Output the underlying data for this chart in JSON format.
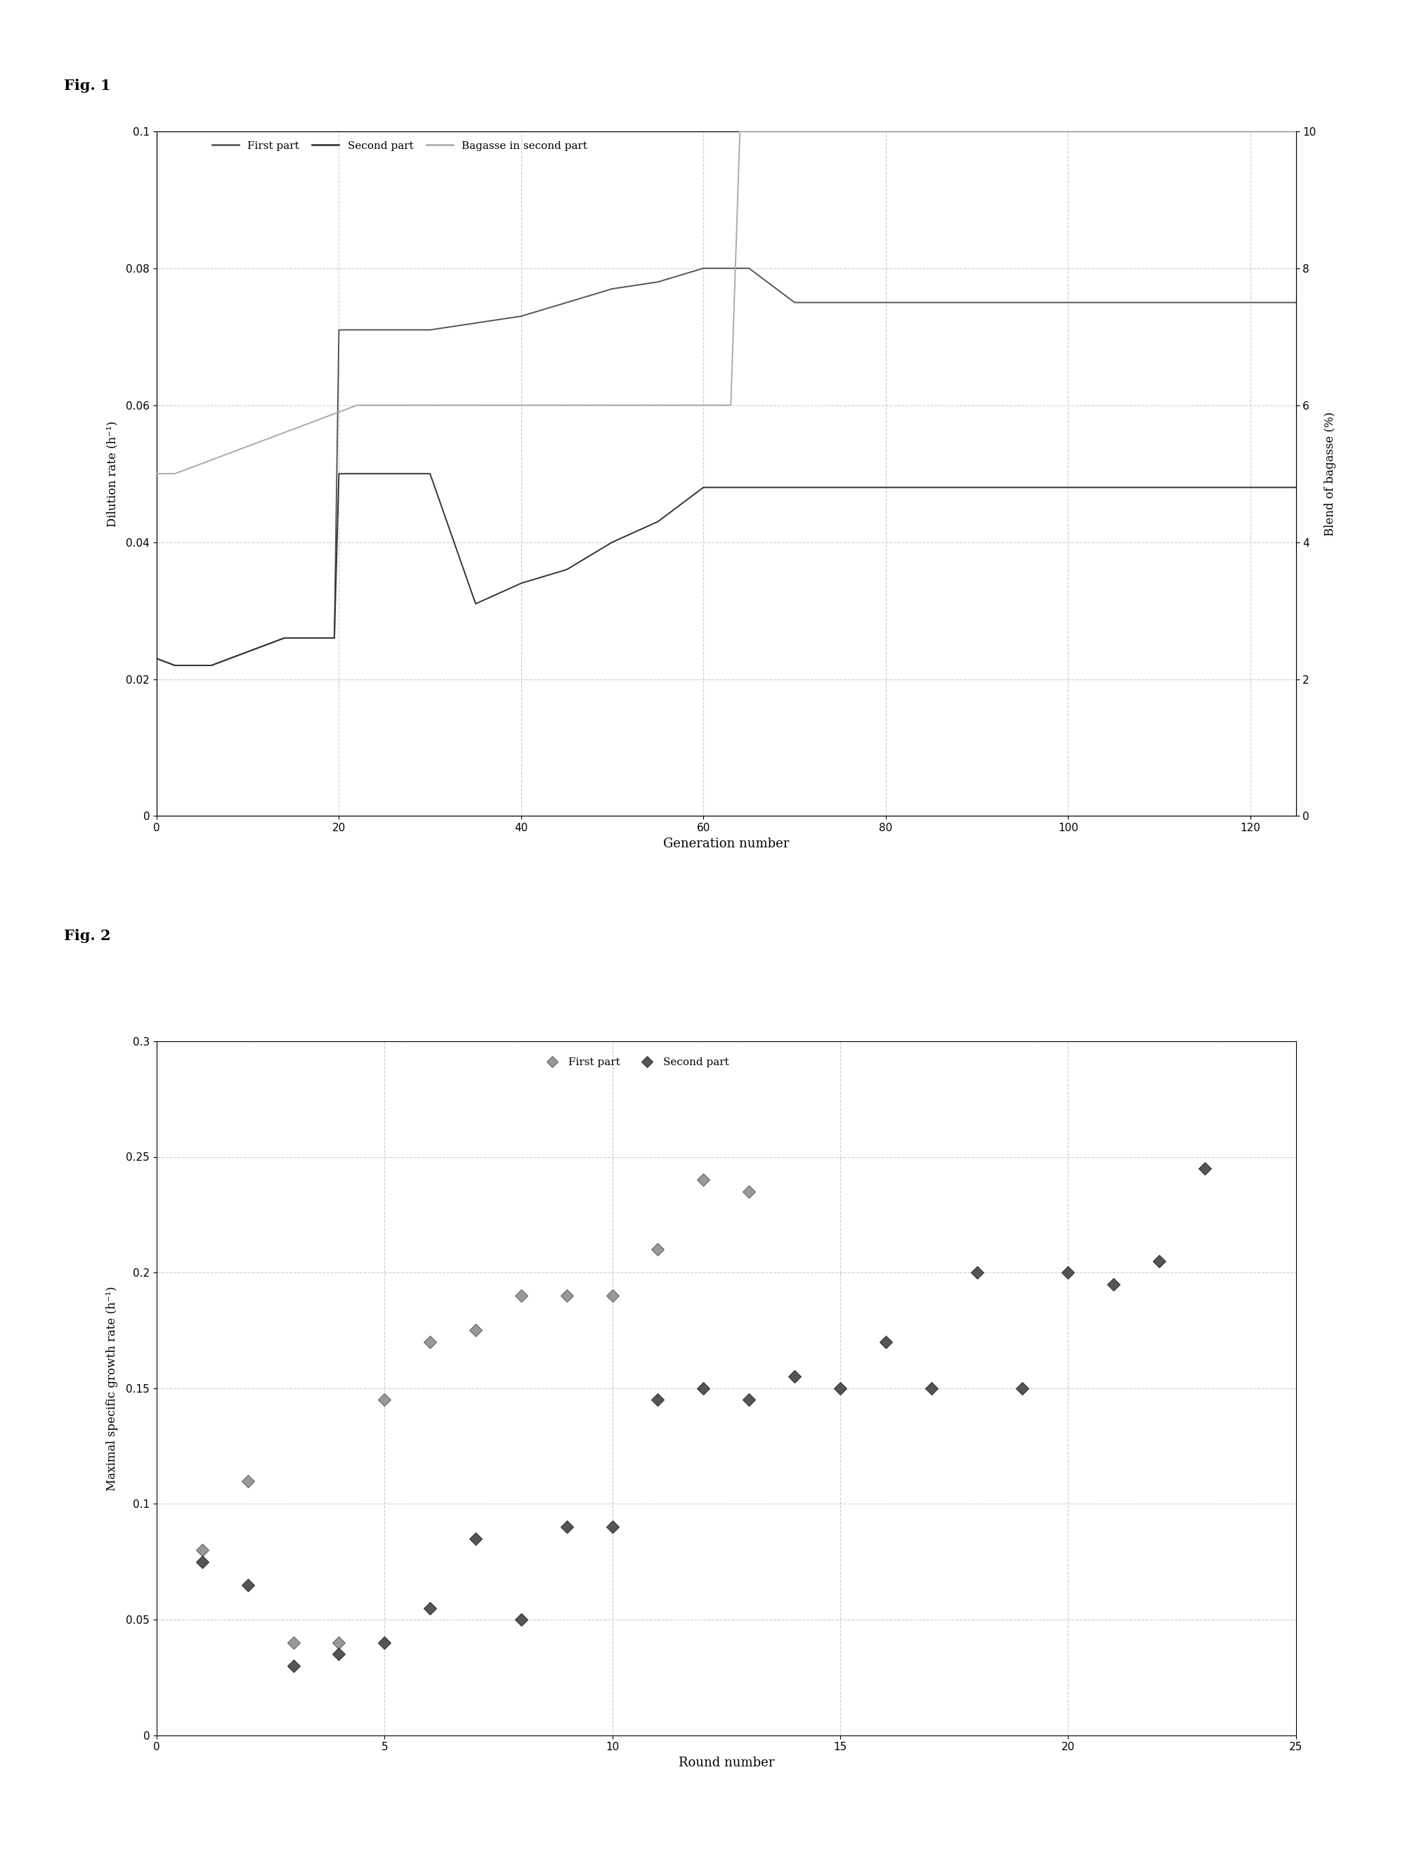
{
  "fig1": {
    "xlabel": "Generation number",
    "ylabel_left": "Dilution rate (h⁻¹)",
    "ylabel_right": "Blend of bagasse (%)",
    "xlim": [
      0,
      125
    ],
    "ylim_left": [
      0,
      0.1
    ],
    "ylim_right": [
      0,
      10
    ],
    "yticks_left": [
      0,
      0.02,
      0.04,
      0.06,
      0.08,
      0.1
    ],
    "yticks_right": [
      0,
      2,
      4,
      6,
      8,
      10
    ],
    "xticks": [
      0,
      20,
      40,
      60,
      80,
      100,
      120
    ],
    "first_part_x": [
      0,
      2,
      4,
      6,
      8,
      10,
      12,
      14,
      16,
      18,
      19.5,
      20,
      22,
      25,
      30,
      35,
      40,
      45,
      50,
      55,
      60,
      62,
      65,
      70,
      75,
      80,
      90,
      100,
      110,
      120,
      125
    ],
    "first_part_y": [
      0.023,
      0.022,
      0.022,
      0.022,
      0.023,
      0.024,
      0.025,
      0.026,
      0.026,
      0.026,
      0.026,
      0.071,
      0.071,
      0.071,
      0.071,
      0.072,
      0.073,
      0.075,
      0.077,
      0.078,
      0.08,
      0.08,
      0.08,
      0.075,
      0.075,
      0.075,
      0.075,
      0.075,
      0.075,
      0.075,
      0.075
    ],
    "second_part_x": [
      0,
      2,
      4,
      6,
      8,
      10,
      12,
      14,
      16,
      18,
      19.5,
      20,
      22,
      25,
      30,
      35,
      40,
      45,
      50,
      55,
      60,
      62,
      65,
      70,
      75,
      80,
      90,
      100,
      110,
      120,
      125
    ],
    "second_part_y": [
      0.023,
      0.022,
      0.022,
      0.022,
      0.023,
      0.024,
      0.025,
      0.026,
      0.026,
      0.026,
      0.026,
      0.05,
      0.05,
      0.05,
      0.05,
      0.031,
      0.034,
      0.036,
      0.04,
      0.043,
      0.048,
      0.048,
      0.048,
      0.048,
      0.048,
      0.048,
      0.048,
      0.048,
      0.048,
      0.048,
      0.048
    ],
    "bagasse_x": [
      0,
      2,
      4,
      6,
      8,
      10,
      12,
      14,
      16,
      18,
      20,
      22,
      25,
      30,
      35,
      40,
      45,
      50,
      55,
      60,
      63,
      64,
      65,
      70,
      75,
      80,
      90,
      100,
      110,
      120,
      125
    ],
    "bagasse_y": [
      5.0,
      5.0,
      5.1,
      5.2,
      5.3,
      5.4,
      5.5,
      5.6,
      5.7,
      5.8,
      5.9,
      6.0,
      6.0,
      6.0,
      6.0,
      6.0,
      6.0,
      6.0,
      6.0,
      6.0,
      6.0,
      10.0,
      10.0,
      10.0,
      10.0,
      10.0,
      10.0,
      10.0,
      10.0,
      10.0,
      10.0
    ],
    "color_first": "#555555",
    "color_second": "#333333",
    "color_bagasse": "#aaaaaa",
    "legend_labels": [
      "First part",
      "Second part",
      "Bagasse in second part"
    ],
    "grid_color": "#cccccc"
  },
  "fig2": {
    "xlabel": "Round number",
    "ylabel": "Maximal specific growth rate (h⁻¹)",
    "xlim": [
      0,
      25
    ],
    "ylim": [
      0,
      0.3
    ],
    "yticks": [
      0,
      0.05,
      0.1,
      0.15,
      0.2,
      0.25,
      0.3
    ],
    "xticks": [
      0,
      5,
      10,
      15,
      20,
      25
    ],
    "first_part_x": [
      1,
      2,
      3,
      4,
      5,
      6,
      7,
      8,
      9,
      10,
      11,
      12,
      13
    ],
    "first_part_y": [
      0.08,
      0.11,
      0.04,
      0.04,
      0.145,
      0.17,
      0.175,
      0.19,
      0.19,
      0.19,
      0.21,
      0.24,
      0.235
    ],
    "second_part_x": [
      1,
      2,
      3,
      4,
      5,
      6,
      7,
      8,
      9,
      10,
      11,
      12,
      13,
      14,
      15,
      16,
      17,
      18,
      19,
      20,
      21,
      22,
      23
    ],
    "second_part_y": [
      0.075,
      0.065,
      0.03,
      0.035,
      0.04,
      0.055,
      0.085,
      0.05,
      0.09,
      0.09,
      0.145,
      0.15,
      0.145,
      0.155,
      0.15,
      0.17,
      0.15,
      0.2,
      0.15,
      0.2,
      0.195,
      0.205,
      0.245
    ],
    "color_first": "#999999",
    "color_second": "#555555",
    "legend_labels": [
      "First part",
      "Second part"
    ],
    "grid_color": "#cccccc",
    "marker_size": 9
  }
}
